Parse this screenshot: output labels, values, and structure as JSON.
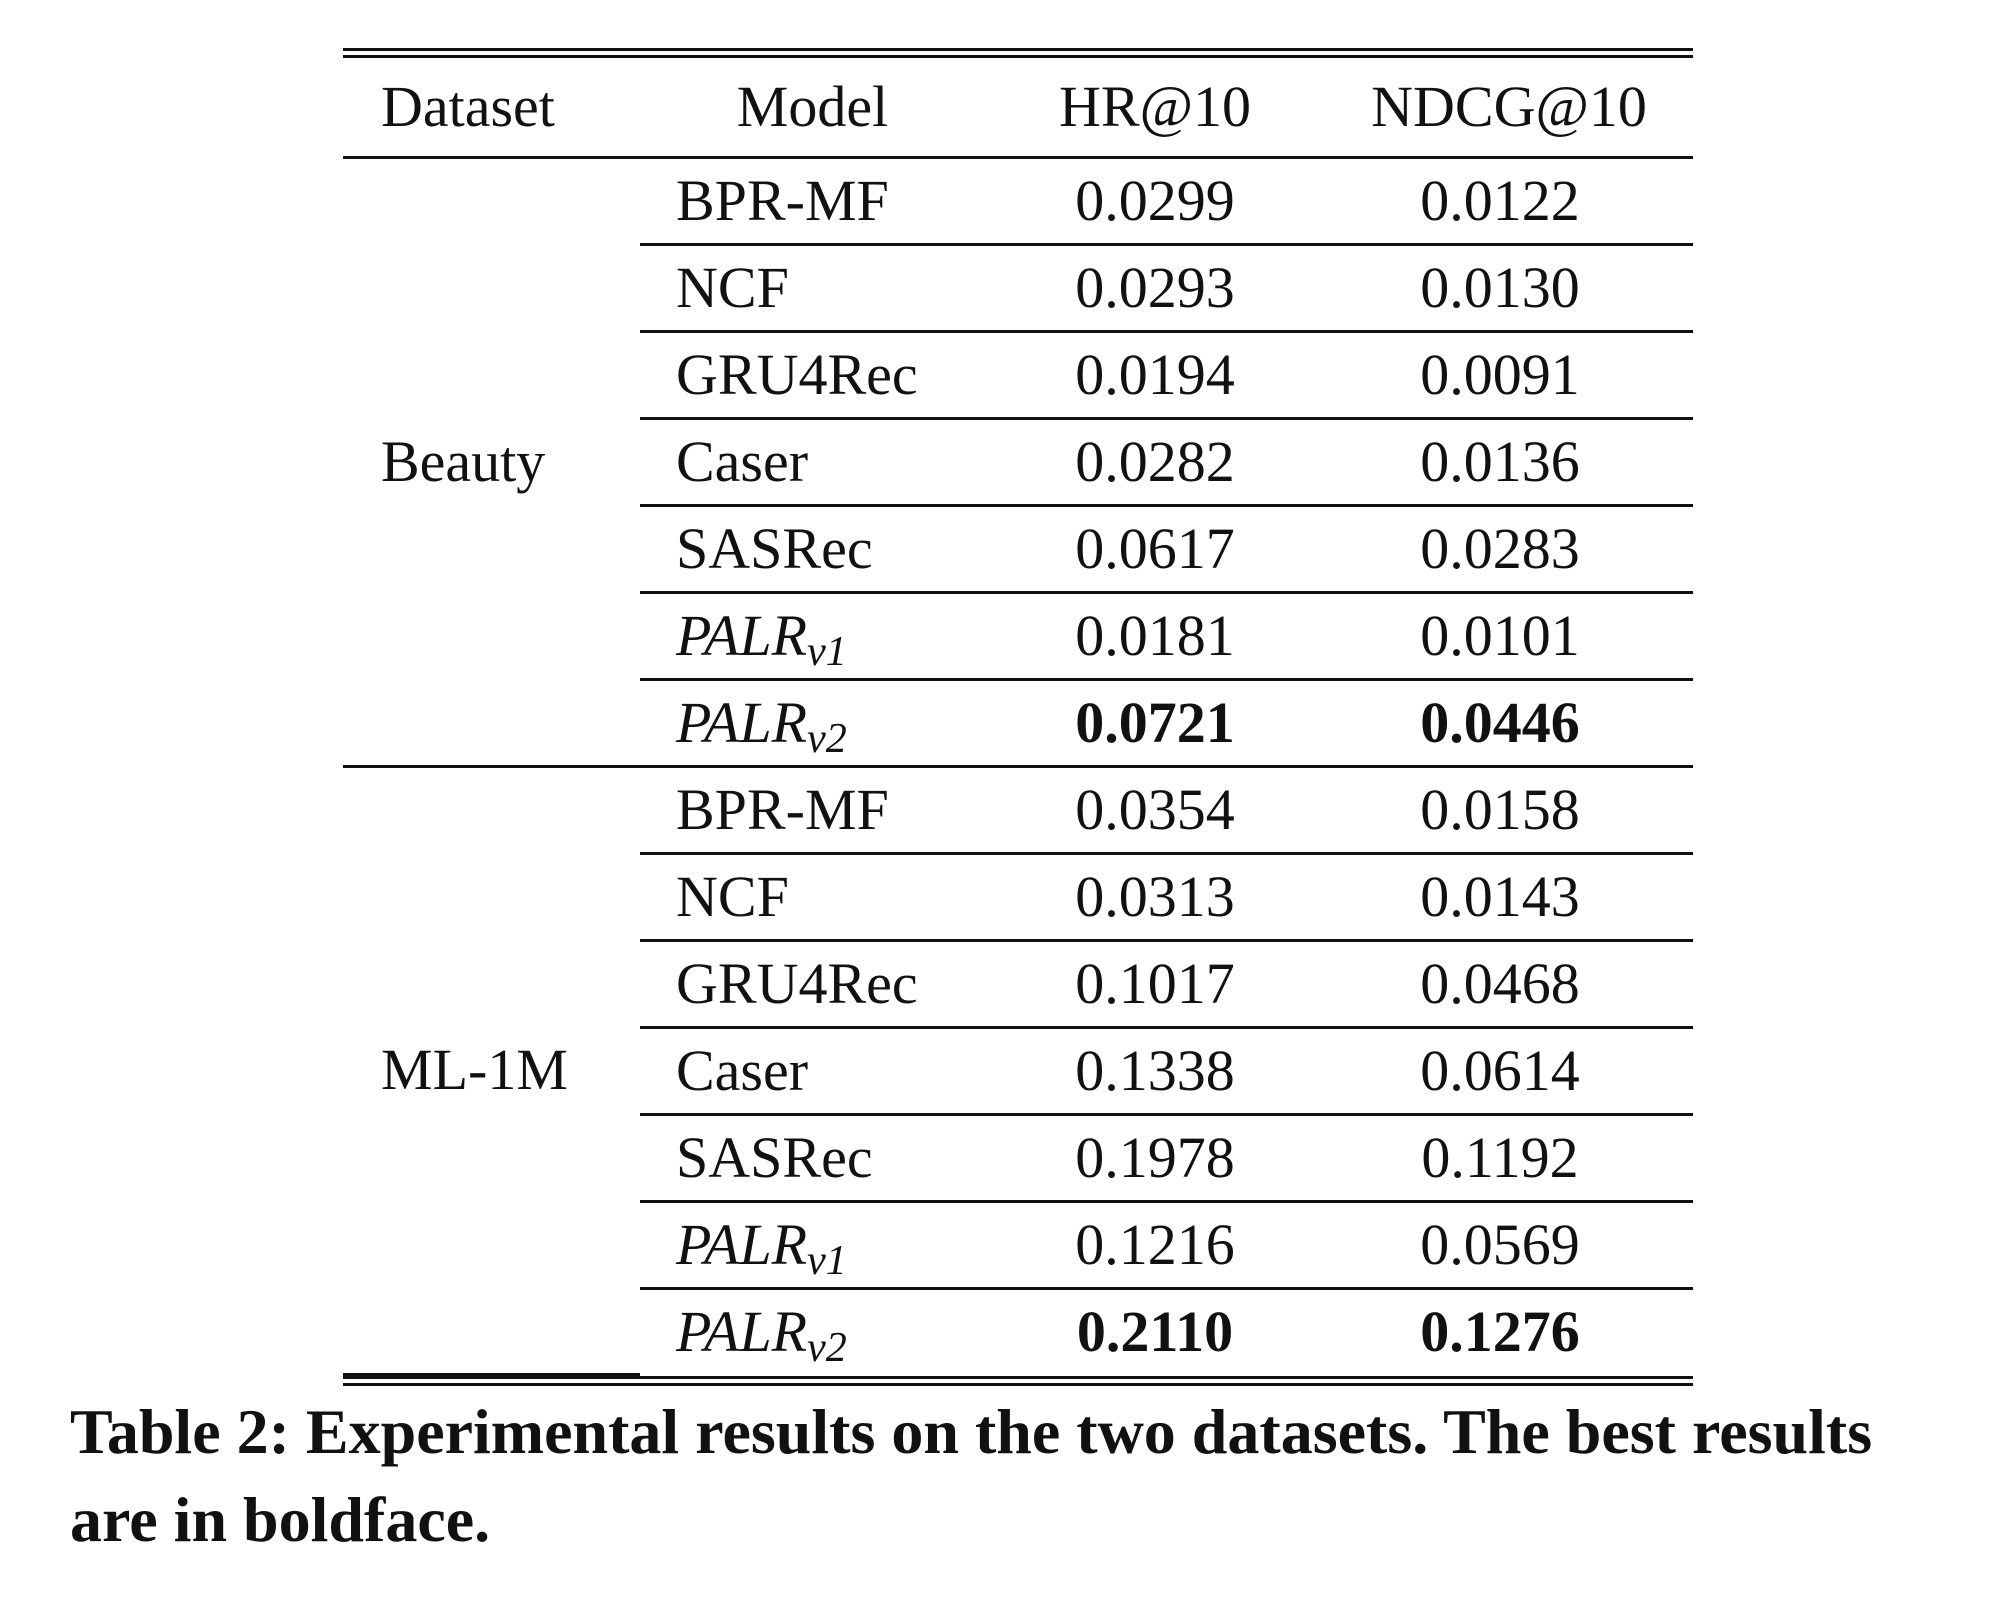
{
  "table": {
    "headers": {
      "dataset": "Dataset",
      "model": "Model",
      "hr": "HR@10",
      "ndcg": "NDCG@10"
    },
    "groups": [
      {
        "dataset": "Beauty",
        "rows": [
          {
            "model": "BPR-MF",
            "sub": "",
            "hr": "0.0299",
            "ndcg": "0.0122",
            "bold": false
          },
          {
            "model": "NCF",
            "sub": "",
            "hr": "0.0293",
            "ndcg": "0.0130",
            "bold": false
          },
          {
            "model": "GRU4Rec",
            "sub": "",
            "hr": "0.0194",
            "ndcg": "0.0091",
            "bold": false
          },
          {
            "model": "Caser",
            "sub": "",
            "hr": "0.0282",
            "ndcg": "0.0136",
            "bold": false
          },
          {
            "model": "SASRec",
            "sub": "",
            "hr": "0.0617",
            "ndcg": "0.0283",
            "bold": false
          },
          {
            "model": "PALR",
            "sub": "v1",
            "hr": "0.0181",
            "ndcg": "0.0101",
            "bold": false
          },
          {
            "model": "PALR",
            "sub": "v2",
            "hr": "0.0721",
            "ndcg": "0.0446",
            "bold": true
          }
        ]
      },
      {
        "dataset": "ML-1M",
        "rows": [
          {
            "model": "BPR-MF",
            "sub": "",
            "hr": "0.0354",
            "ndcg": "0.0158",
            "bold": false
          },
          {
            "model": "NCF",
            "sub": "",
            "hr": "0.0313",
            "ndcg": "0.0143",
            "bold": false
          },
          {
            "model": "GRU4Rec",
            "sub": "",
            "hr": "0.1017",
            "ndcg": "0.0468",
            "bold": false
          },
          {
            "model": "Caser",
            "sub": "",
            "hr": "0.1338",
            "ndcg": "0.0614",
            "bold": false
          },
          {
            "model": "SASRec",
            "sub": "",
            "hr": "0.1978",
            "ndcg": "0.1192",
            "bold": false
          },
          {
            "model": "PALR",
            "sub": "v1",
            "hr": "0.1216",
            "ndcg": "0.0569",
            "bold": false
          },
          {
            "model": "PALR",
            "sub": "v2",
            "hr": "0.2110",
            "ndcg": "0.1276",
            "bold": true
          }
        ]
      }
    ]
  },
  "caption": "Table 2: Experimental results on the two datasets. The best results are in boldface."
}
